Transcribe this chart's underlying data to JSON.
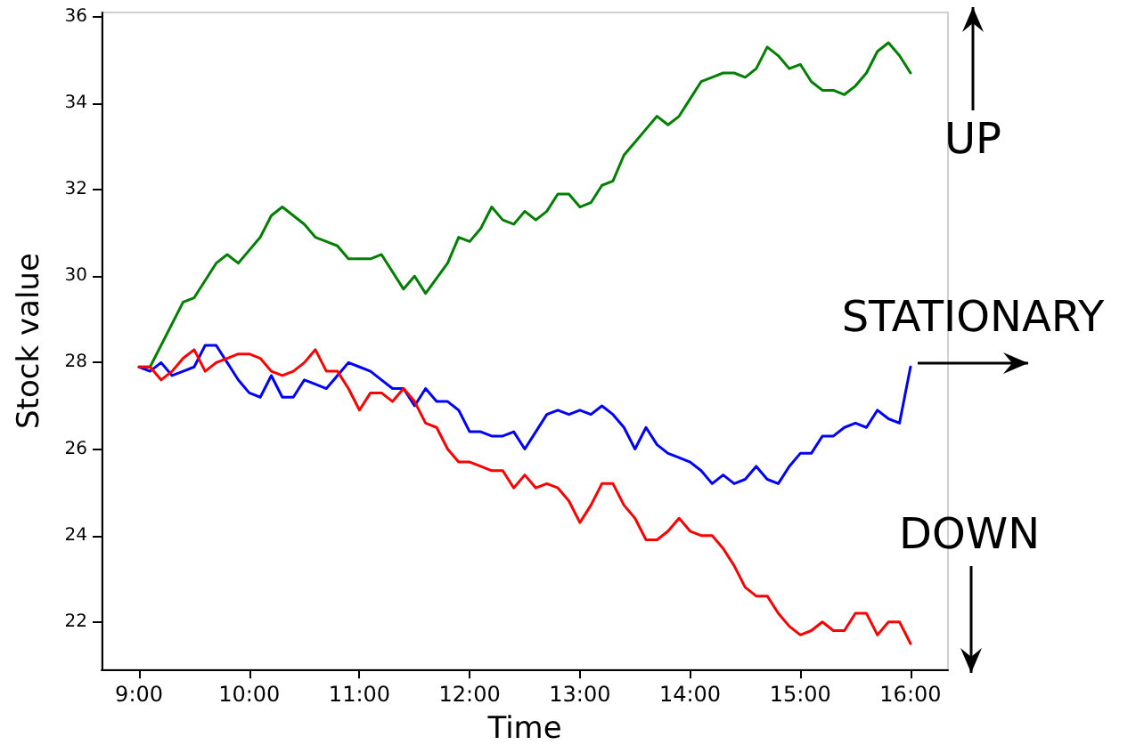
{
  "chart_data": {
    "type": "line",
    "xlabel": "Time",
    "ylabel": "Stock value",
    "xlim": [
      8.66,
      16.34
    ],
    "ylim": [
      20.9,
      36.1
    ],
    "xticks": [
      {
        "value": 9,
        "label": "9:00"
      },
      {
        "value": 10,
        "label": "10:00"
      },
      {
        "value": 11,
        "label": "11:00"
      },
      {
        "value": 12,
        "label": "12:00"
      },
      {
        "value": 13,
        "label": "13:00"
      },
      {
        "value": 14,
        "label": "14:00"
      },
      {
        "value": 15,
        "label": "15:00"
      },
      {
        "value": 16,
        "label": "16:00"
      }
    ],
    "yticks": [
      22,
      24,
      26,
      28,
      30,
      32,
      34,
      36
    ],
    "grid": false,
    "marker": "none",
    "line_style": "solid",
    "annotations": [
      "UP",
      "STATIONARY",
      "DOWN"
    ],
    "x": [
      9.0,
      9.1,
      9.2,
      9.3,
      9.4,
      9.5,
      9.6,
      9.7,
      9.8,
      9.9,
      10.0,
      10.1,
      10.2,
      10.3,
      10.4,
      10.5,
      10.6,
      10.7,
      10.8,
      10.9,
      11.0,
      11.1,
      11.2,
      11.3,
      11.4,
      11.5,
      11.6,
      11.7,
      11.8,
      11.9,
      12.0,
      12.1,
      12.2,
      12.3,
      12.4,
      12.5,
      12.6,
      12.7,
      12.8,
      12.9,
      13.0,
      13.1,
      13.2,
      13.3,
      13.4,
      13.5,
      13.6,
      13.7,
      13.8,
      13.9,
      14.0,
      14.1,
      14.2,
      14.3,
      14.4,
      14.5,
      14.6,
      14.7,
      14.8,
      14.9,
      15.0,
      15.1,
      15.2,
      15.3,
      15.4,
      15.5,
      15.6,
      15.7,
      15.8,
      15.9,
      16.0
    ],
    "series": [
      {
        "color": "#008000",
        "x": [
          9.0,
          9.1,
          9.4,
          9.5,
          9.7,
          9.8,
          9.9,
          10.0,
          10.1,
          10.2,
          10.3,
          10.4,
          10.5,
          10.6,
          10.7,
          10.8,
          10.9,
          11.0,
          11.1,
          11.2,
          11.4,
          11.5,
          11.6,
          11.8,
          11.9,
          12.0,
          12.1,
          12.2,
          12.3,
          12.4,
          12.5,
          12.6,
          12.7,
          12.8,
          12.9,
          13.0,
          13.1,
          13.2,
          13.3,
          13.4,
          13.5,
          13.6,
          13.7,
          13.8,
          13.9,
          14.0,
          14.1,
          14.2,
          14.3,
          14.4,
          14.5,
          14.6,
          14.7,
          14.8,
          14.9,
          15.0,
          15.1,
          15.2,
          15.3,
          15.4,
          15.5,
          15.6,
          15.7,
          15.8,
          15.9,
          16.0
        ],
        "values": [
          27.9,
          27.9,
          29.4,
          29.5,
          30.3,
          30.5,
          30.3,
          30.6,
          30.9,
          31.4,
          31.6,
          31.4,
          31.2,
          30.9,
          30.8,
          30.7,
          30.4,
          30.4,
          30.4,
          30.5,
          29.7,
          30.0,
          29.6,
          30.3,
          30.9,
          30.8,
          31.1,
          31.6,
          31.3,
          31.2,
          31.5,
          31.3,
          31.5,
          31.9,
          31.9,
          31.6,
          31.7,
          32.1,
          32.2,
          32.8,
          33.1,
          33.4,
          33.7,
          33.5,
          33.7,
          34.1,
          34.5,
          34.6,
          34.7,
          34.7,
          34.6,
          34.8,
          35.3,
          35.1,
          34.8,
          34.9,
          34.5,
          34.3,
          34.3,
          34.2,
          34.4,
          34.7,
          35.2,
          35.4,
          35.1,
          34.7
        ]
      },
      {
        "color": "#0000ff",
        "values": [
          27.9,
          27.8,
          28.0,
          27.7,
          27.8,
          27.9,
          28.4,
          28.4,
          28.0,
          27.6,
          27.3,
          27.2,
          27.7,
          27.2,
          27.2,
          27.6,
          27.5,
          27.4,
          27.7,
          28.0,
          27.9,
          27.8,
          27.6,
          27.4,
          27.4,
          27.0,
          27.4,
          27.1,
          27.1,
          26.9,
          26.4,
          26.4,
          26.3,
          26.3,
          26.4,
          26.0,
          26.4,
          26.8,
          26.9,
          26.8,
          26.9,
          26.8,
          27.0,
          26.8,
          26.5,
          26.0,
          26.5,
          26.1,
          25.9,
          25.8,
          25.7,
          25.5,
          25.2,
          25.4,
          25.2,
          25.3,
          25.6,
          25.3,
          25.2,
          25.6,
          25.9,
          25.9,
          26.3,
          26.3,
          26.5,
          26.6,
          26.5,
          26.9,
          26.7,
          26.6,
          27.9
        ]
      },
      {
        "color": "#ff0000",
        "values": [
          27.9,
          27.9,
          27.6,
          27.8,
          28.1,
          28.3,
          27.8,
          28.0,
          28.1,
          28.2,
          28.2,
          28.1,
          27.8,
          27.7,
          27.8,
          28.0,
          28.3,
          27.8,
          27.8,
          27.4,
          26.9,
          27.3,
          27.3,
          27.1,
          27.4,
          27.1,
          26.6,
          26.5,
          26.0,
          25.7,
          25.7,
          25.6,
          25.5,
          25.5,
          25.1,
          25.4,
          25.1,
          25.2,
          25.1,
          24.8,
          24.3,
          24.7,
          25.2,
          25.2,
          24.7,
          24.4,
          23.9,
          23.9,
          24.1,
          24.4,
          24.1,
          24.0,
          24.0,
          23.7,
          23.3,
          22.8,
          22.6,
          22.6,
          22.2,
          21.9,
          21.7,
          21.8,
          22.0,
          21.8,
          21.8,
          22.2,
          22.2,
          21.7,
          22.0,
          22.0,
          21.5
        ]
      }
    ]
  }
}
